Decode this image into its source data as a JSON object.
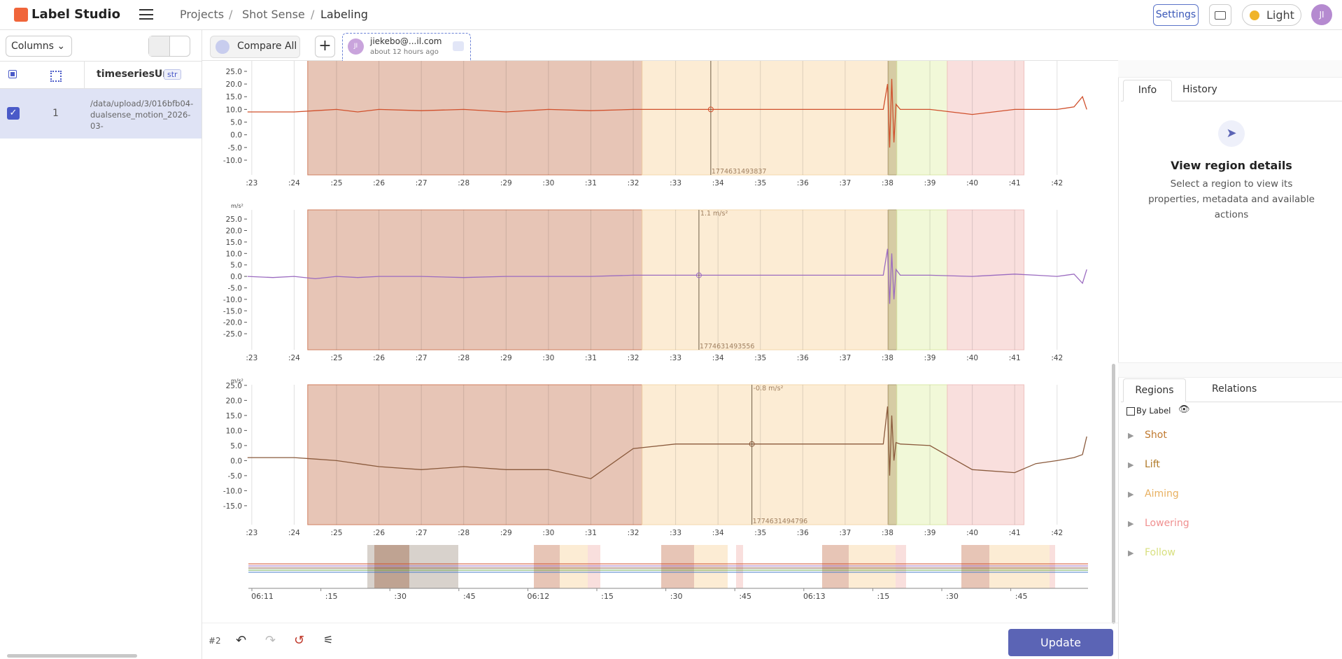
{
  "topbar": {
    "brand": "Label Studio",
    "breadcrumb": [
      "Projects",
      "Shot Sense",
      "Labeling"
    ],
    "settings": "Settings",
    "theme": "Light",
    "avatar": "JI"
  },
  "datamanager": {
    "columns_button": "Columns",
    "header": [
      "timeseriesUrl",
      "str"
    ],
    "rows": [
      [
        1,
        "/data/upload/3/016bfb04-dualsense_motion_2026-03-"
      ]
    ]
  },
  "tabs": {
    "compare": "Compare All",
    "annotation": {
      "avatar": "JI",
      "user": "jiekebo@...il.com",
      "time": "about 12 hours ago"
    }
  },
  "timeseries": {
    "xlim": [
      22.92,
      42.73
    ],
    "xticks": [
      {
        "value": 23,
        "label": ":23"
      },
      {
        "value": 24,
        "label": ":24"
      },
      {
        "value": 25,
        "label": ":25"
      },
      {
        "value": 26,
        "label": ":26"
      },
      {
        "value": 27,
        "label": ":27"
      },
      {
        "value": 28,
        "label": ":28"
      },
      {
        "value": 29,
        "label": ":29"
      },
      {
        "value": 30,
        "label": ":30"
      },
      {
        "value": 31,
        "label": ":31"
      },
      {
        "value": 32,
        "label": ":32"
      },
      {
        "value": 33,
        "label": ":33"
      },
      {
        "value": 34,
        "label": ":34"
      },
      {
        "value": 35,
        "label": ":35"
      },
      {
        "value": 36,
        "label": ":36"
      },
      {
        "value": 37,
        "label": ":37"
      },
      {
        "value": 38,
        "label": ":38"
      },
      {
        "value": 39,
        "label": ":39"
      },
      {
        "value": 40,
        "label": ":40"
      },
      {
        "value": 41,
        "label": ":41"
      },
      {
        "value": 42,
        "label": ":42"
      }
    ],
    "regions": [
      {
        "start": 24.32,
        "end": 32.21,
        "color": "#e7c5b6",
        "edge": "#d07e5e"
      },
      {
        "start": 32.21,
        "end": 38.02,
        "color": "#fcecd4",
        "edge": "#f3d7ac"
      },
      {
        "start": 38.02,
        "end": 38.22,
        "color": "#d6cca4",
        "edge": "#b0a070"
      },
      {
        "start": 38.22,
        "end": 39.41,
        "color": "#f1f8d8",
        "edge": "#dbe9a8"
      },
      {
        "start": 39.41,
        "end": 41.22,
        "color": "#f9dfdd",
        "edge": "#efc2bf"
      }
    ],
    "x": [
      22.9,
      23.5,
      24,
      24.5,
      25,
      25.5,
      26,
      27,
      28,
      29,
      30,
      31,
      32,
      33,
      34,
      35,
      36,
      37,
      37.9,
      38.0,
      38.05,
      38.1,
      38.15,
      38.2,
      38.3,
      39,
      40,
      41,
      41.5,
      42,
      42.4,
      42.6,
      42.7
    ],
    "panels": [
      {
        "color": "#d0502c",
        "ylim": [
          -15.8,
          29.4
        ],
        "yticks": [
          {
            "value": 25,
            "label": "25.0"
          },
          {
            "value": 20,
            "label": "20.0"
          },
          {
            "value": 15,
            "label": "15.0"
          },
          {
            "value": 10,
            "label": "10.0"
          },
          {
            "value": 5,
            "label": "5.0"
          },
          {
            "value": 0,
            "label": "0.0"
          },
          {
            "value": -5,
            "label": "-5.0"
          },
          {
            "value": -10,
            "label": "-10.0"
          }
        ],
        "values": [
          9,
          9,
          9,
          9.5,
          10,
          9,
          10,
          9.5,
          10,
          9,
          10,
          9.5,
          10,
          10,
          10,
          10,
          10,
          10,
          10,
          20,
          -5,
          22,
          -3,
          12,
          10,
          10,
          8,
          10,
          10,
          10,
          11,
          15,
          10
        ],
        "cursor": {
          "x": 33.83,
          "time": "1774631493837"
        }
      },
      {
        "color": "#9b6bc0",
        "unit": "m/s²",
        "ylim": [
          -32,
          29
        ],
        "yticks": [
          {
            "value": 25,
            "label": "25.0"
          },
          {
            "value": 20,
            "label": "20.0"
          },
          {
            "value": 15,
            "label": "15.0"
          },
          {
            "value": 10,
            "label": "10.0"
          },
          {
            "value": 5,
            "label": "5.0"
          },
          {
            "value": 0,
            "label": "0.0"
          },
          {
            "value": -5,
            "label": "-5.0"
          },
          {
            "value": -10,
            "label": "-10.0"
          },
          {
            "value": -15,
            "label": "-15.0"
          },
          {
            "value": -20,
            "label": "-20.0"
          },
          {
            "value": -25,
            "label": "-25.0"
          }
        ],
        "values": [
          0,
          -0.5,
          0,
          -1,
          0,
          -0.5,
          0,
          0,
          -0.5,
          0,
          0,
          0,
          0.5,
          0.5,
          0.5,
          0.5,
          0.5,
          0.5,
          0.5,
          12,
          -12,
          10,
          -10,
          3,
          0.5,
          0.5,
          0,
          1,
          0.5,
          0,
          1,
          -3,
          3
        ],
        "cursor": {
          "x": 33.55,
          "value_label": "1.1 m/s²",
          "time": "1774631493556"
        }
      },
      {
        "color": "#8a5a3c",
        "unit": "m/s²",
        "ylim": [
          -21.3,
          25.2
        ],
        "yticks": [
          {
            "value": 25,
            "label": "25.0"
          },
          {
            "value": 20,
            "label": "20.0"
          },
          {
            "value": 15,
            "label": "15.0"
          },
          {
            "value": 10,
            "label": "10.0"
          },
          {
            "value": 5,
            "label": "5.0"
          },
          {
            "value": 0,
            "label": "0.0"
          },
          {
            "value": -5,
            "label": "-5.0"
          },
          {
            "value": -10,
            "label": "-10.0"
          },
          {
            "value": -15,
            "label": "-15.0"
          }
        ],
        "values": [
          1,
          1,
          1,
          0.5,
          0,
          -1,
          -2,
          -3,
          -2,
          -3,
          -3,
          -6,
          4,
          5.5,
          5.5,
          5.5,
          5.5,
          5.5,
          5.5,
          18,
          -5,
          15,
          0,
          6,
          5.5,
          5,
          -3,
          -4,
          -1,
          0,
          1,
          2,
          8
        ],
        "cursor": {
          "x": 34.8,
          "value_label": "-0.8 m/s²",
          "time": "1774631494796"
        }
      }
    ]
  },
  "overview": {
    "ticks": [
      "06:11",
      ":15",
      ":30",
      ":45",
      "06:12",
      ":15",
      ":30",
      ":45",
      "06:13",
      ":15",
      ":30",
      ":45"
    ]
  },
  "info_panel": {
    "tabs": [
      "Info",
      "History"
    ],
    "title": "View region details",
    "text": "Select a region to view its properties, metadata and available actions"
  },
  "regions_panel": {
    "tabs": [
      "Regions",
      "Relations"
    ],
    "group": "By Label",
    "labels": [
      {
        "name": "Shot",
        "color": "#c07a30"
      },
      {
        "name": "Lift",
        "color": "#b07a28"
      },
      {
        "name": "Aiming",
        "color": "#e8b060"
      },
      {
        "name": "Lowering",
        "color": "#f09090"
      },
      {
        "name": "Follow",
        "color": "#d8e080"
      }
    ]
  },
  "footer": {
    "annotation_id": "#2",
    "update": "Update"
  }
}
